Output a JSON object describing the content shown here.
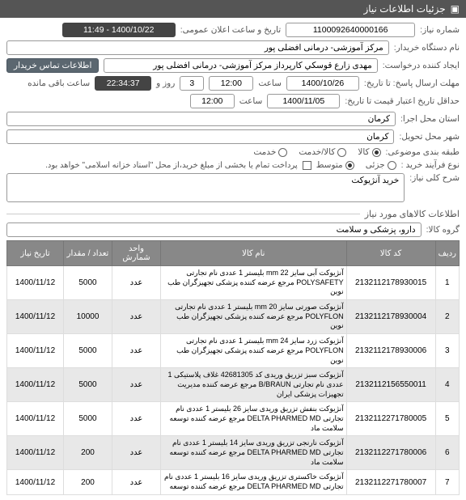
{
  "header": {
    "title": "جزئیات اطلاعات نیاز"
  },
  "fields": {
    "need_no_label": "شماره نیاز:",
    "need_no": "1100092640000166",
    "ann_date_label": "تاریخ و ساعت اعلان عمومی:",
    "ann_date": "1400/10/22 - 11:49",
    "buyer_label": "نام دستگاه خریدار:",
    "buyer": "مرکز آموزشی- درمانی افضلی پور",
    "creator_label": "ایجاد کننده درخواست:",
    "creator": "مهدی زارع قوسکي کارپرداز مرکز آموزشی- درمانی افضلی پور",
    "contact_btn": "اطلاعات تماس خریدار",
    "deadline_label": "مهلت ارسال پاسخ: تا تاریخ:",
    "deadline_date": "1400/10/26",
    "time_label": "ساعت",
    "deadline_time": "12:00",
    "remain_days_label": "روز و",
    "remain_days": "3",
    "remain_time": "22:34:37",
    "remain_suffix": "ساعت باقی مانده",
    "min_valid_label": "حداقل تاریخ اعتبار قیمت تا تاریخ:",
    "min_valid_date": "1400/11/05",
    "min_valid_time": "12:00",
    "exec_loc_label": "استان محل اجرا:",
    "exec_loc": "کرمان",
    "deliv_loc_label": "شهر محل تحویل:",
    "deliv_loc": "کرمان",
    "subject_cat_label": "طبقه بندی موضوعی:",
    "radio_kala": "کالا",
    "radio_service": "کالا/خدمت",
    "radio_servonly": "خدمت",
    "proc_type_label": "نوع فرآیند خرید :",
    "radio_low": "جزئی",
    "radio_mid": "متوسط",
    "pay_note": "پرداخت تمام یا بخشی از مبلغ خرید،از محل \"اسناد خزانه اسلامی\" خواهد بود.",
    "desc_label": "شرح کلی نیاز:",
    "desc": "خرید آنژیوکت",
    "section2_title": "اطلاعات کالاهای مورد نیاز",
    "group_label": "گروه کالا:",
    "group": "دارو، پزشکی و سلامت"
  },
  "table": {
    "cols": [
      "ردیف",
      "کد کالا",
      "نام کالا",
      "واحد شمارش",
      "تعداد / مقدار",
      "تاریخ نیاز"
    ],
    "rows": [
      {
        "n": "1",
        "code": "2132112178930015",
        "name": "آنژیوکت آبی سایز mm 22 بلیستر 1 عددی نام تجارتی POLYSAFETY مرجع عرضه کننده پزشکی تجهیزگران طب نوین",
        "unit": "عدد",
        "qty": "5000",
        "date": "1400/11/12"
      },
      {
        "n": "2",
        "code": "2132112178930004",
        "name": "آنژیوکت صورتی سایز mm 20 بلیستر 1 عددی نام تجارتی POLYFLON مرجع عرضه کننده پزشکی تجهیزگران طب نوین",
        "unit": "عدد",
        "qty": "10000",
        "date": "1400/11/12"
      },
      {
        "n": "3",
        "code": "2132112178930006",
        "name": "آنژیوکت زرد سایز mm 24 بلیستر 1 عددی نام تجارتی POLYFLON مرجع عرضه کننده پزشکی تجهیزگران طب نوین",
        "unit": "عدد",
        "qty": "5000",
        "date": "1400/11/12"
      },
      {
        "n": "4",
        "code": "2132112156550011",
        "name": "آنژیوکت سبز تزریق وریدی کد 42681305 غلاف پلاستیکی 1 عددی نام تجارتی B/BRAUN مرجع عرضه کننده مدیریت تجهیزات پزشکی ایران",
        "unit": "عدد",
        "qty": "5000",
        "date": "1400/11/12"
      },
      {
        "n": "5",
        "code": "2132112271780005",
        "name": "آنژیوکت بنفش تزریق وریدی سایز 26 بلیستر 1 عددی نام تجارتی DELTA PHARMED MD مرجع عرضه کننده توسعه سلامت ماد",
        "unit": "عدد",
        "qty": "5000",
        "date": "1400/11/12"
      },
      {
        "n": "6",
        "code": "2132112271780006",
        "name": "آنژیوکت نارنجی تزریق وریدی سایز 14 بلیستر 1 عددی نام تجارتی DELTA PHARMED MD مرجع عرضه کننده توسعه سلامت ماد",
        "unit": "عدد",
        "qty": "200",
        "date": "1400/11/12"
      },
      {
        "n": "7",
        "code": "2132112271780007",
        "name": "آنژیوکت خاکستری تزریق وریدی سایز 16 بلیستر 1 عددی نام تجارتی DELTA PHARMED MD مرجع عرضه کننده توسعه",
        "unit": "عدد",
        "qty": "200",
        "date": "1400/11/12"
      }
    ]
  }
}
